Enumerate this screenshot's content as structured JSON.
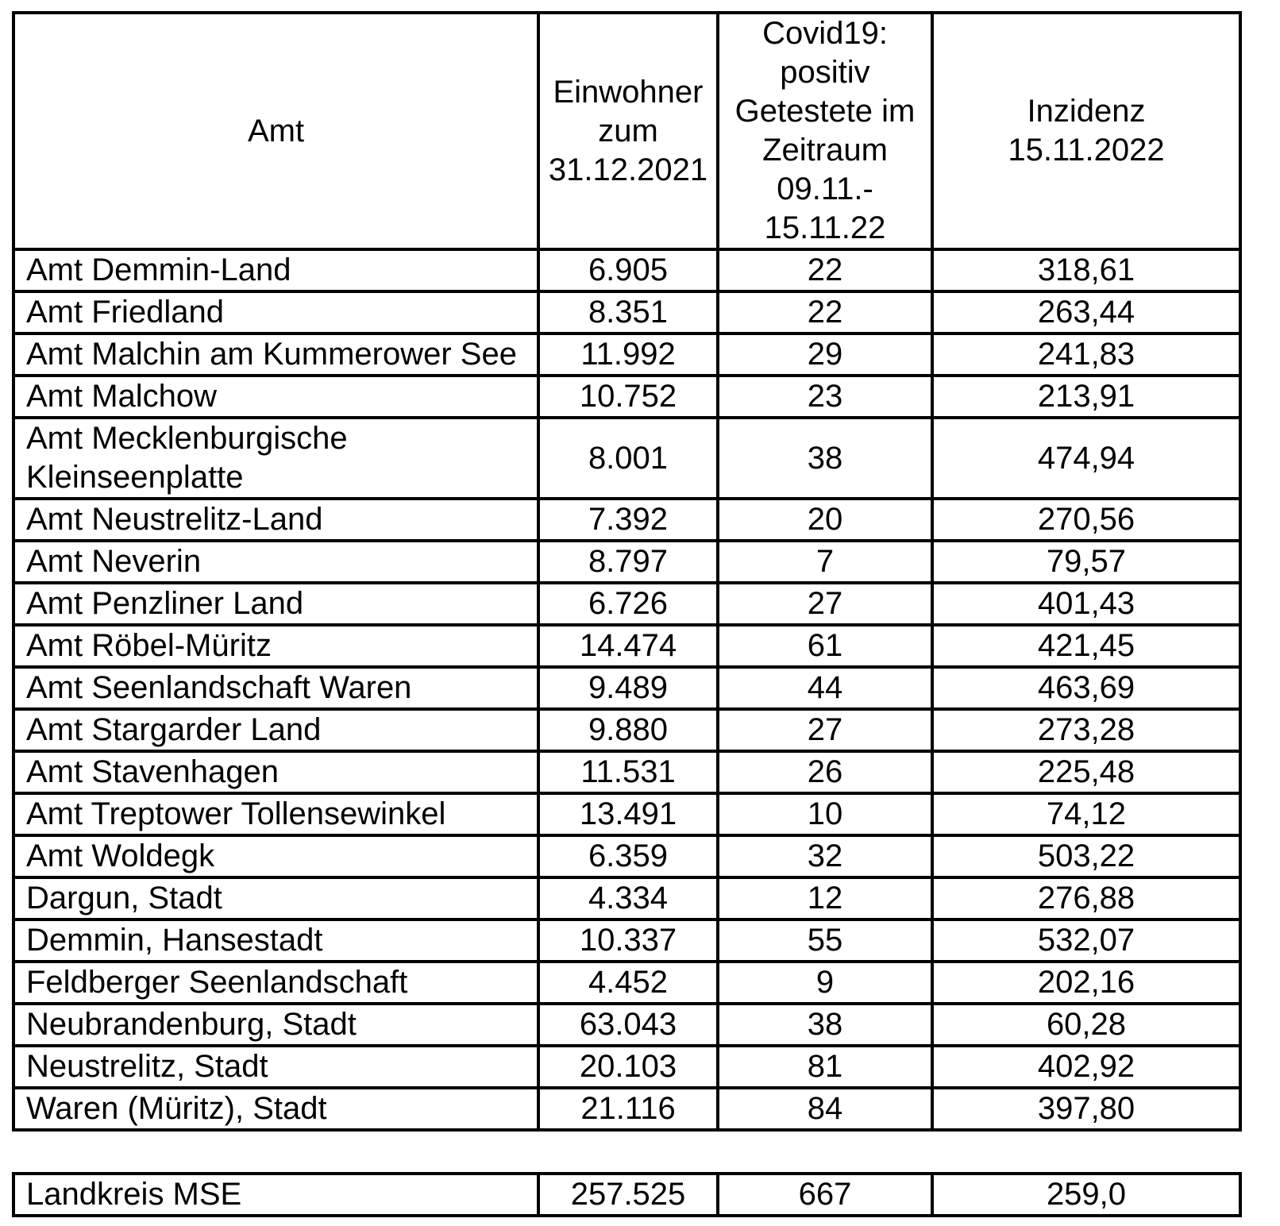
{
  "page": {
    "background_color": "#ffffff",
    "border_color": "#000000",
    "text_color": "#000000"
  },
  "table": {
    "headers": [
      {
        "id": "amt",
        "label": "Amt"
      },
      {
        "id": "einwohner",
        "label": "Einwohner\nzum\n31.12.2021"
      },
      {
        "id": "getestete",
        "label": "Covid19:\npositiv\nGetestete im\nZeitraum\n09.11.-\n15.11.22"
      },
      {
        "id": "inzidenz",
        "label": "Inzidenz\n15.11.2022"
      }
    ],
    "rows": [
      [
        "Amt Demmin-Land",
        "6.905",
        "22",
        "318,61"
      ],
      [
        "Amt Friedland",
        "8.351",
        "22",
        "263,44"
      ],
      [
        "Amt Malchin am Kummerower See",
        "11.992",
        "29",
        "241,83"
      ],
      [
        "Amt Malchow",
        "10.752",
        "23",
        "213,91"
      ],
      [
        "Amt Mecklenburgische Kleinseenplatte",
        "8.001",
        "38",
        "474,94"
      ],
      [
        "Amt Neustrelitz-Land",
        "7.392",
        "20",
        "270,56"
      ],
      [
        "Amt Neverin",
        "8.797",
        "7",
        "79,57"
      ],
      [
        "Amt Penzliner Land",
        "6.726",
        "27",
        "401,43"
      ],
      [
        "Amt Röbel-Müritz",
        "14.474",
        "61",
        "421,45"
      ],
      [
        "Amt Seenlandschaft Waren",
        "9.489",
        "44",
        "463,69"
      ],
      [
        "Amt Stargarder Land",
        "9.880",
        "27",
        "273,28"
      ],
      [
        "Amt Stavenhagen",
        "11.531",
        "26",
        "225,48"
      ],
      [
        "Amt Treptower Tollensewinkel",
        "13.491",
        "10",
        "74,12"
      ],
      [
        "Amt Woldegk",
        "6.359",
        "32",
        "503,22"
      ],
      [
        "Dargun, Stadt",
        "4.334",
        "12",
        "276,88"
      ],
      [
        "Demmin, Hansestadt",
        "10.337",
        "55",
        "532,07"
      ],
      [
        "Feldberger Seenlandschaft",
        "4.452",
        "9",
        "202,16"
      ],
      [
        "Neubrandenburg, Stadt",
        "63.043",
        "38",
        "60,28"
      ],
      [
        "Neustrelitz, Stadt",
        "20.103",
        "81",
        "402,92"
      ],
      [
        "Waren (Müritz), Stadt",
        "21.116",
        "84",
        "397,80"
      ]
    ]
  },
  "summary": {
    "row": [
      "Landkreis MSE",
      "257.525",
      "667",
      "259,0"
    ]
  }
}
